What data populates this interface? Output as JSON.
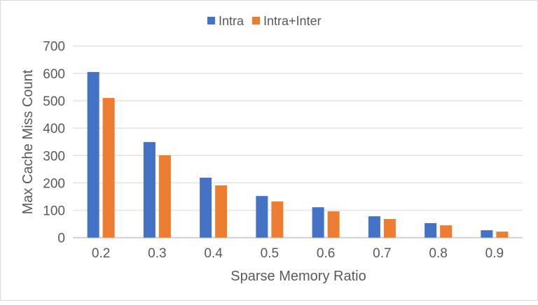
{
  "chart_data": {
    "type": "bar",
    "title": "",
    "xlabel": "Sparse Memory Ratio",
    "ylabel": "Max Cache Miss Count",
    "categories": [
      "0.2",
      "0.3",
      "0.4",
      "0.5",
      "0.6",
      "0.7",
      "0.8",
      "0.9"
    ],
    "series": [
      {
        "name": "Intra",
        "color": "#4472C4",
        "values": [
          605,
          349,
          219,
          152,
          111,
          78,
          53,
          27
        ]
      },
      {
        "name": "Intra+Inter",
        "color": "#ED7D31",
        "values": [
          510,
          301,
          191,
          132,
          96,
          68,
          45,
          22
        ]
      }
    ],
    "ylim": [
      0,
      700
    ],
    "yticks": [
      0,
      100,
      200,
      300,
      400,
      500,
      600,
      700
    ],
    "grid": true,
    "legend": "top-center"
  }
}
